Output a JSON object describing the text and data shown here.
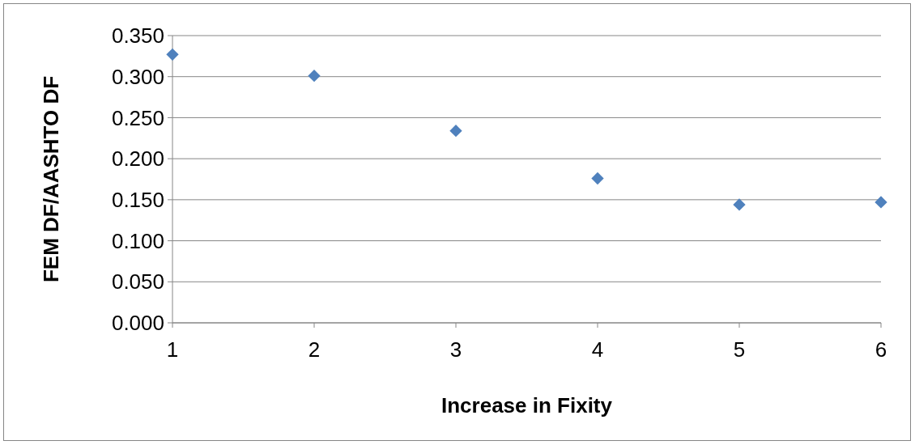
{
  "chart_data": {
    "type": "scatter",
    "xlabel": "Increase in Fixity",
    "ylabel": "FEM DF/AASHTO DF",
    "x": [
      1,
      2,
      3,
      4,
      5,
      6
    ],
    "series": [
      {
        "color": "#4f81bd",
        "values": [
          0.327,
          0.301,
          0.234,
          0.176,
          0.144,
          0.147
        ]
      }
    ],
    "xlim": [
      1,
      6
    ],
    "xticks": [
      1,
      2,
      3,
      4,
      5,
      6
    ],
    "ylim": [
      0,
      0.35
    ],
    "yticks": [
      {
        "value": 0,
        "label": "0.000"
      },
      {
        "value": 0.05,
        "label": "0.050"
      },
      {
        "value": 0.1,
        "label": "0.100"
      },
      {
        "value": 0.15,
        "label": "0.150"
      },
      {
        "value": 0.2,
        "label": "0.200"
      },
      {
        "value": 0.25,
        "label": "0.250"
      },
      {
        "value": 0.3,
        "label": "0.300"
      },
      {
        "value": 0.35,
        "label": "0.350"
      }
    ],
    "grid": "y",
    "marker": "diamond"
  }
}
